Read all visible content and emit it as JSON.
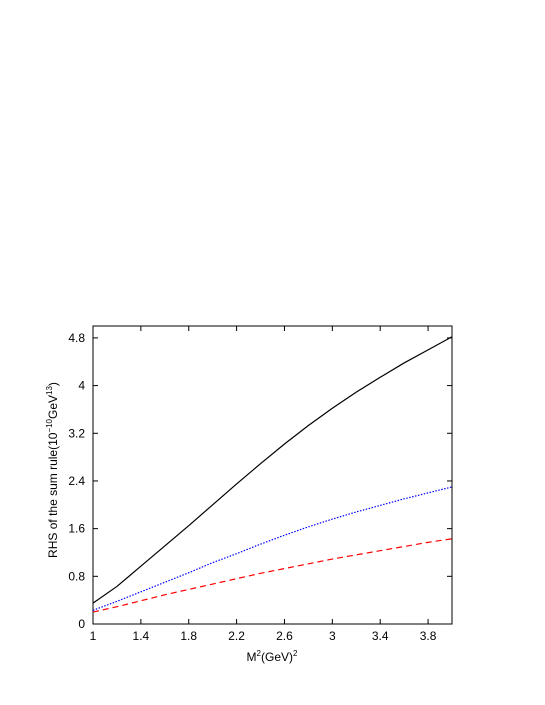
{
  "chart_data": {
    "type": "line",
    "xlabel": {
      "base": "M",
      "sup1": "2",
      "mid": "(GeV)",
      "sup2": "2"
    },
    "ylabel": {
      "pre": "RHS of the sum rule(10",
      "sup1": "−10",
      "mid": "GeV",
      "sup2": "13",
      "post": ")"
    },
    "xlim": [
      1.0,
      4.0
    ],
    "ylim": [
      0.0,
      5.0
    ],
    "xticks": [
      "1",
      "1.4",
      "1.8",
      "2.2",
      "2.6",
      "3",
      "3.4",
      "3.8"
    ],
    "yticks": [
      "0",
      "0.8",
      "1.6",
      "2.4",
      "3.2",
      "4",
      "4.8"
    ],
    "grid": false,
    "x": [
      1.0,
      1.2,
      1.4,
      1.6,
      1.8,
      2.0,
      2.2,
      2.4,
      2.6,
      2.8,
      3.0,
      3.2,
      3.4,
      3.6,
      3.8,
      4.0
    ],
    "series": [
      {
        "style": "solid",
        "color": "#000000",
        "values": [
          0.35,
          0.63,
          0.97,
          1.31,
          1.65,
          2.0,
          2.35,
          2.69,
          3.02,
          3.33,
          3.62,
          3.89,
          4.14,
          4.38,
          4.6,
          4.82
        ]
      },
      {
        "style": "dotted",
        "color": "#0000ff",
        "values": [
          0.23,
          0.38,
          0.54,
          0.7,
          0.86,
          1.03,
          1.18,
          1.34,
          1.49,
          1.63,
          1.76,
          1.88,
          1.99,
          2.1,
          2.2,
          2.3
        ]
      },
      {
        "style": "dashed",
        "color": "#ff0000",
        "values": [
          0.2,
          0.29,
          0.39,
          0.49,
          0.58,
          0.67,
          0.76,
          0.85,
          0.93,
          1.01,
          1.09,
          1.16,
          1.23,
          1.3,
          1.37,
          1.43
        ]
      }
    ]
  }
}
